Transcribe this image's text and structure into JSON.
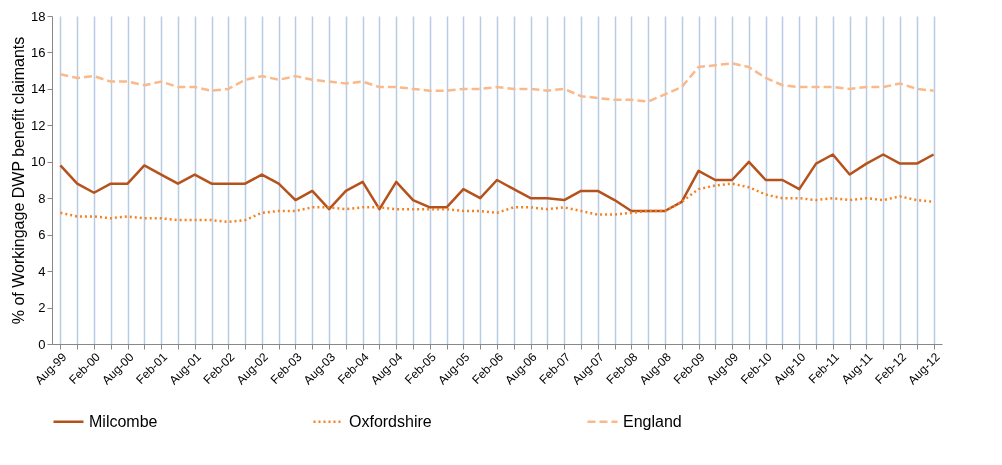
{
  "chart_data": {
    "type": "line",
    "ylabel": "% of Workingage DWP benefit claimants",
    "categories": [
      "Aug-99",
      null,
      "Feb-00",
      null,
      "Aug-00",
      null,
      "Feb-01",
      null,
      "Aug-01",
      null,
      "Feb-02",
      null,
      "Aug-02",
      null,
      "Feb-03",
      null,
      "Aug-03",
      null,
      "Feb-04",
      null,
      "Aug-04",
      null,
      "Feb-05",
      null,
      "Aug-05",
      null,
      "Feb-06",
      null,
      "Aug-06",
      null,
      "Feb-07",
      null,
      "Aug-07",
      null,
      "Feb-08",
      null,
      "Aug-08",
      null,
      "Feb-09",
      null,
      "Aug-09",
      null,
      "Feb-10",
      null,
      "Aug-10",
      null,
      "Feb-11",
      null,
      "Aug-11",
      null,
      "Feb-12",
      null,
      "Aug-12"
    ],
    "series": [
      {
        "name": "Milcombe",
        "color": "#b5521b",
        "line_style": "solid",
        "values": [
          9.8,
          8.8,
          8.3,
          8.8,
          8.8,
          9.8,
          9.3,
          8.8,
          9.3,
          8.8,
          8.8,
          8.8,
          9.3,
          8.8,
          7.9,
          8.4,
          7.4,
          8.4,
          8.9,
          7.4,
          8.9,
          7.9,
          7.5,
          7.5,
          8.5,
          8.0,
          9.0,
          8.5,
          8.0,
          8.0,
          7.9,
          8.4,
          8.4,
          7.9,
          7.3,
          7.3,
          7.3,
          7.8,
          9.5,
          9.0,
          9.0,
          10.0,
          9.0,
          9.0,
          8.5,
          9.9,
          10.4,
          9.3,
          9.9,
          10.4,
          9.9,
          9.9,
          10.4
        ]
      },
      {
        "name": "Oxfordshire",
        "color": "#f58220",
        "line_style": "dotted",
        "values": [
          7.2,
          7.0,
          7.0,
          6.9,
          7.0,
          6.9,
          6.9,
          6.8,
          6.8,
          6.8,
          6.7,
          6.8,
          7.2,
          7.3,
          7.3,
          7.5,
          7.5,
          7.4,
          7.5,
          7.5,
          7.4,
          7.4,
          7.4,
          7.4,
          7.3,
          7.3,
          7.2,
          7.5,
          7.5,
          7.4,
          7.5,
          7.3,
          7.1,
          7.1,
          7.2,
          7.3,
          7.3,
          7.8,
          8.5,
          8.7,
          8.8,
          8.6,
          8.2,
          8.0,
          8.0,
          7.9,
          8.0,
          7.9,
          8.0,
          7.9,
          8.1,
          7.9,
          7.8
        ]
      },
      {
        "name": "England",
        "color": "#f9b98a",
        "line_style": "dashed",
        "values": [
          14.8,
          14.6,
          14.7,
          14.4,
          14.4,
          14.2,
          14.4,
          14.1,
          14.1,
          13.9,
          14.0,
          14.5,
          14.7,
          14.5,
          14.7,
          14.5,
          14.4,
          14.3,
          14.4,
          14.1,
          14.1,
          14.0,
          13.9,
          13.9,
          14.0,
          14.0,
          14.1,
          14.0,
          14.0,
          13.9,
          14.0,
          13.6,
          13.5,
          13.4,
          13.4,
          13.3,
          13.7,
          14.1,
          15.2,
          15.3,
          15.4,
          15.2,
          14.6,
          14.2,
          14.1,
          14.1,
          14.1,
          14.0,
          14.1,
          14.1,
          14.3,
          14.0,
          13.9
        ]
      }
    ],
    "ylim": [
      0,
      18
    ],
    "yticks": [
      0,
      2,
      4,
      6,
      8,
      10,
      12,
      14,
      16,
      18
    ],
    "grid": "x",
    "legend": "bottom"
  }
}
